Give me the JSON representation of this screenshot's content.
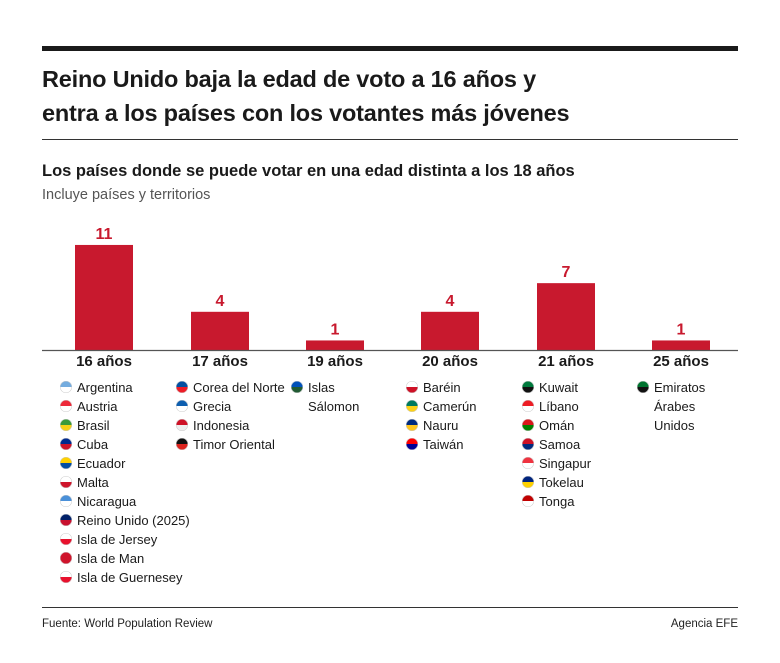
{
  "title_line1": "Reino Unido baja la edad de voto a 16 años y",
  "title_line2": "entra a los países con los votantes más jóvenes",
  "subtitle": "Los países donde se puede votar en una edad distinta a los 18 años",
  "note": "Incluye países y territorios",
  "source": "Fuente: World Population Review",
  "credit": "Agencia EFE",
  "colors": {
    "bar": "#c8192e",
    "label": "#c8192e"
  },
  "chart_data": {
    "type": "bar",
    "categories": [
      "16 años",
      "17 años",
      "19 años",
      "20 años",
      "21 años",
      "25 años"
    ],
    "values": [
      11,
      4,
      1,
      4,
      7,
      1
    ],
    "data_labels": true,
    "grid": false
  },
  "lists": [
    [
      {
        "name": "Argentina",
        "flag": [
          "#74acdf",
          "#ffffff"
        ]
      },
      {
        "name": "Austria",
        "flag": [
          "#ed2939",
          "#ffffff"
        ]
      },
      {
        "name": "Brasil",
        "flag": [
          "#3a9a3a",
          "#f7d117"
        ]
      },
      {
        "name": "Cuba",
        "flag": [
          "#002a8f",
          "#cf142b"
        ]
      },
      {
        "name": "Ecuador",
        "flag": [
          "#ffd100",
          "#034ea2"
        ]
      },
      {
        "name": "Malta",
        "flag": [
          "#ffffff",
          "#cf142b"
        ]
      },
      {
        "name": "Nicaragua",
        "flag": [
          "#4a90d9",
          "#ffffff"
        ]
      },
      {
        "name": "Reino Unido (2025)",
        "flag": [
          "#012169",
          "#c8102e"
        ]
      },
      {
        "name": "Isla de Jersey",
        "flag": [
          "#ffffff",
          "#e8112d"
        ]
      },
      {
        "name": "Isla de Man",
        "flag": [
          "#cf142b",
          "#cf142b"
        ]
      },
      {
        "name": "Isla de Guernesey",
        "flag": [
          "#ffffff",
          "#e8112d"
        ]
      }
    ],
    [
      {
        "name": "Corea del Norte",
        "flag": [
          "#024fa2",
          "#ed1c27"
        ]
      },
      {
        "name": "Grecia",
        "flag": [
          "#0d5eaf",
          "#ffffff"
        ]
      },
      {
        "name": "Indonesia",
        "flag": [
          "#ce1126",
          "#eeeeee"
        ]
      },
      {
        "name": "Timor Oriental",
        "flag": [
          "#111111",
          "#dc241f"
        ]
      }
    ],
    [
      {
        "name": "Islas Sálomon",
        "flag": [
          "#0051ba",
          "#215b33"
        ]
      }
    ],
    [
      {
        "name": "Baréin",
        "flag": [
          "#ffffff",
          "#ce1126"
        ]
      },
      {
        "name": "Camerún",
        "flag": [
          "#007a5e",
          "#fcd116"
        ]
      },
      {
        "name": "Nauru",
        "flag": [
          "#002b7f",
          "#ffc61e"
        ]
      },
      {
        "name": "Taiwán",
        "flag": [
          "#fe0000",
          "#000095"
        ]
      }
    ],
    [
      {
        "name": "Kuwait",
        "flag": [
          "#007a3d",
          "#111111"
        ]
      },
      {
        "name": "Líbano",
        "flag": [
          "#ed1c24",
          "#ffffff"
        ]
      },
      {
        "name": "Omán",
        "flag": [
          "#db161b",
          "#008000"
        ]
      },
      {
        "name": "Samoa",
        "flag": [
          "#ce1126",
          "#002b7f"
        ]
      },
      {
        "name": "Singapur",
        "flag": [
          "#ef3340",
          "#ffffff"
        ]
      },
      {
        "name": "Tokelau",
        "flag": [
          "#00247d",
          "#fed100"
        ]
      },
      {
        "name": "Tonga",
        "flag": [
          "#c10000",
          "#ffffff"
        ]
      }
    ],
    [
      {
        "name": "Emiratos Árabes Unidos",
        "flag": [
          "#00732f",
          "#111111"
        ]
      }
    ]
  ]
}
